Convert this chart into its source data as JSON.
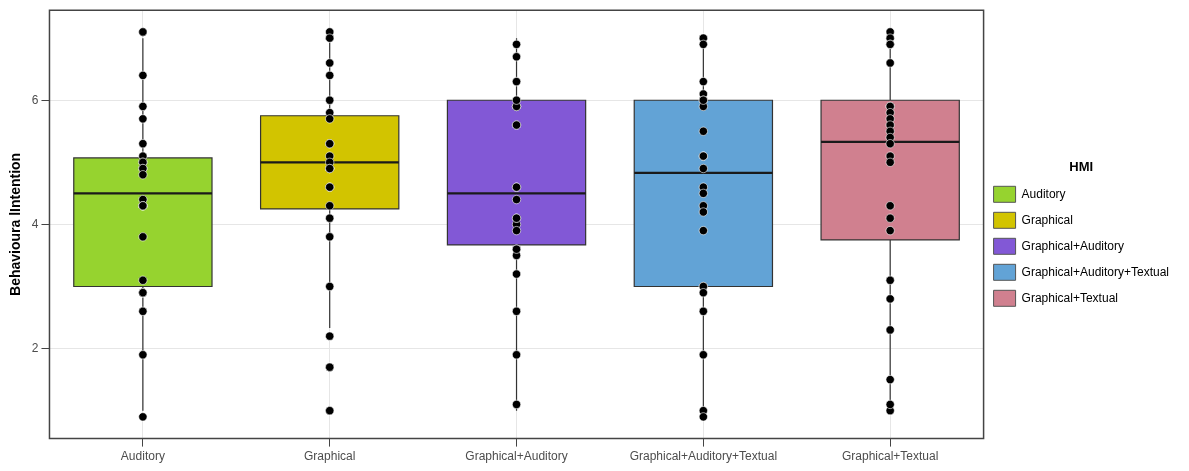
{
  "chart_data": {
    "type": "box",
    "ylabel": "Behavioura lIntention",
    "legend_title": "HMI",
    "legend": "right",
    "grid": true,
    "marker": "circle",
    "categories": [
      "Auditory",
      "Graphical",
      "Graphical+Auditory",
      "Graphical+Auditory+Textual",
      "Graphical+Textual"
    ],
    "ylim": [
      0.55,
      7.45
    ],
    "yticks": [
      2,
      4,
      6
    ],
    "series": [
      {
        "name": "Auditory",
        "color": "#96d32f",
        "boxes": [
          {
            "low": 1,
            "q1": 3,
            "median": 4.5,
            "q3": 5.07,
            "high": 7
          },
          null,
          null,
          null,
          null
        ]
      },
      {
        "name": "Graphical",
        "color": "#d2c400",
        "boxes": [
          null,
          {
            "low": 2.33,
            "q1": 4.25,
            "median": 5,
            "q3": 5.75,
            "high": 7
          },
          null,
          null,
          null
        ]
      },
      {
        "name": "Graphical+Auditory",
        "color": "#8258d6",
        "boxes": [
          null,
          null,
          {
            "low": 1,
            "q1": 3.67,
            "median": 4.5,
            "q3": 6,
            "high": 7
          },
          null,
          null
        ]
      },
      {
        "name": "Graphical+Auditory+Textual",
        "color": "#62a3d6",
        "boxes": [
          null,
          null,
          null,
          {
            "low": 1,
            "q1": 3,
            "median": 4.83,
            "q3": 6,
            "high": 7
          },
          null
        ]
      },
      {
        "name": "Graphical+Textual",
        "color": "#d0808f",
        "boxes": [
          null,
          null,
          null,
          null,
          {
            "low": 1,
            "q1": 3.75,
            "median": 5.33,
            "q3": 6,
            "high": 7
          }
        ]
      },
      {
        "type": "scatter",
        "color": "#000000",
        "x": [
          "Auditory",
          "Auditory",
          "Auditory",
          "Auditory",
          "Auditory",
          "Auditory",
          "Auditory",
          "Auditory",
          "Auditory",
          "Auditory",
          "Auditory",
          "Auditory",
          "Auditory",
          "Auditory",
          "Auditory",
          "Auditory",
          "Auditory",
          "Auditory",
          "Auditory",
          "Auditory",
          "Auditory",
          "Auditory",
          "Auditory",
          "Auditory",
          "Auditory",
          "Graphical",
          "Graphical",
          "Graphical",
          "Graphical",
          "Graphical",
          "Graphical",
          "Graphical",
          "Graphical",
          "Graphical",
          "Graphical",
          "Graphical",
          "Graphical",
          "Graphical",
          "Graphical",
          "Graphical",
          "Graphical",
          "Graphical",
          "Graphical",
          "Graphical",
          "Graphical",
          "Graphical",
          "Graphical",
          "Graphical",
          "Graphical",
          "Graphical",
          "Graphical",
          "Graphical+Auditory",
          "Graphical+Auditory",
          "Graphical+Auditory",
          "Graphical+Auditory",
          "Graphical+Auditory",
          "Graphical+Auditory",
          "Graphical+Auditory",
          "Graphical+Auditory",
          "Graphical+Auditory",
          "Graphical+Auditory",
          "Graphical+Auditory",
          "Graphical+Auditory",
          "Graphical+Auditory",
          "Graphical+Auditory",
          "Graphical+Auditory",
          "Graphical+Auditory",
          "Graphical+Auditory",
          "Graphical+Auditory",
          "Graphical+Auditory",
          "Graphical+Auditory",
          "Graphical+Auditory",
          "Graphical+Auditory",
          "Graphical+Auditory",
          "Graphical+Auditory",
          "Graphical+Auditory+Textual",
          "Graphical+Auditory+Textual",
          "Graphical+Auditory+Textual",
          "Graphical+Auditory+Textual",
          "Graphical+Auditory+Textual",
          "Graphical+Auditory+Textual",
          "Graphical+Auditory+Textual",
          "Graphical+Auditory+Textual",
          "Graphical+Auditory+Textual",
          "Graphical+Auditory+Textual",
          "Graphical+Auditory+Textual",
          "Graphical+Auditory+Textual",
          "Graphical+Auditory+Textual",
          "Graphical+Auditory+Textual",
          "Graphical+Auditory+Textual",
          "Graphical+Auditory+Textual",
          "Graphical+Auditory+Textual",
          "Graphical+Auditory+Textual",
          "Graphical+Auditory+Textual",
          "Graphical+Auditory+Textual",
          "Graphical+Auditory+Textual",
          "Graphical+Auditory+Textual",
          "Graphical+Auditory+Textual",
          "Graphical+Auditory+Textual",
          "Graphical+Textual",
          "Graphical+Textual",
          "Graphical+Textual",
          "Graphical+Textual",
          "Graphical+Textual",
          "Graphical+Textual",
          "Graphical+Textual",
          "Graphical+Textual",
          "Graphical+Textual",
          "Graphical+Textual",
          "Graphical+Textual",
          "Graphical+Textual",
          "Graphical+Textual",
          "Graphical+Textual",
          "Graphical+Textual",
          "Graphical+Textual",
          "Graphical+Textual",
          "Graphical+Textual",
          "Graphical+Textual",
          "Graphical+Textual",
          "Graphical+Textual",
          "Graphical+Textual",
          "Graphical+Textual",
          "Graphical+Textual"
        ],
        "values": [
          7.1,
          7.1,
          6.4,
          5.9,
          5.7,
          5.3,
          5.1,
          5,
          5,
          4.9,
          4.9,
          4.8,
          4.4,
          4.3,
          4.3,
          4.3,
          3.8,
          3.1,
          2.9,
          2.9,
          2.9,
          2.9,
          2.6,
          1.9,
          0.9,
          7,
          7.1,
          6.6,
          6.4,
          6,
          5.8,
          5.7,
          5.3,
          5.3,
          5.1,
          4.9,
          5,
          4.9,
          4.9,
          4.6,
          4.6,
          4.3,
          4.1,
          3.8,
          3,
          2.2,
          1.7,
          1.7,
          1,
          1,
          7,
          6.9,
          6.7,
          6.3,
          6.3,
          5.9,
          5.9,
          5.9,
          6,
          5.6,
          5.6,
          4.6,
          4.6,
          4.4,
          4,
          3.9,
          4.1,
          4.1,
          3.6,
          3.5,
          3.6,
          3.2,
          2.6,
          1.9,
          1.1,
          7,
          7,
          6.9,
          6.3,
          6.1,
          6,
          5.9,
          6,
          5.5,
          5.1,
          5.1,
          4.9,
          4.6,
          4.5,
          4.3,
          4.2,
          3.9,
          3,
          3,
          2.9,
          2.6,
          1.9,
          1,
          0.9,
          7.1,
          7,
          6.9,
          6.9,
          6.6,
          5.9,
          5.9,
          5.8,
          5.7,
          5.6,
          5.5,
          5.4,
          5.3,
          5.1,
          5,
          4.3,
          4.1,
          3.9,
          3.1,
          2.8,
          2.3,
          1.5,
          1,
          1.1
        ]
      }
    ]
  }
}
